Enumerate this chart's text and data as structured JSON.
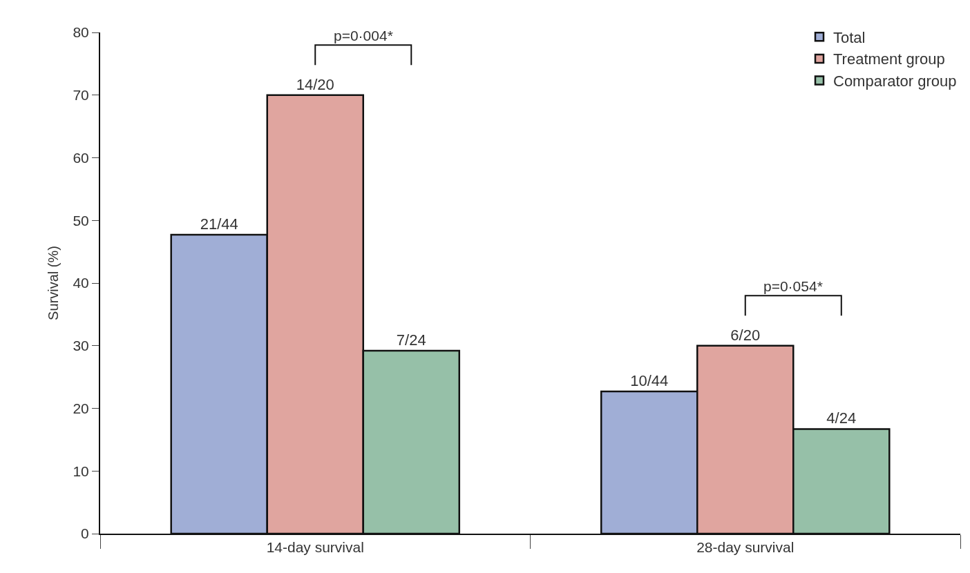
{
  "chart_data": {
    "type": "bar",
    "ylabel": "Survival (%)",
    "categories": [
      "14-day survival",
      "28-day survival"
    ],
    "series": [
      {
        "name": "Total",
        "color": "#a0aed6",
        "values": [
          47.7,
          22.7
        ],
        "value_labels": [
          "21/44",
          "10/44"
        ]
      },
      {
        "name": "Treatment group",
        "color": "#e0a59f",
        "values": [
          70,
          30
        ],
        "value_labels": [
          "14/20",
          "6/20"
        ]
      },
      {
        "name": "Comparator group",
        "color": "#96c0a8",
        "values": [
          29.2,
          16.7
        ],
        "value_labels": [
          "7/24",
          "4/24"
        ]
      }
    ],
    "ylim": [
      0,
      80
    ],
    "yticks": [
      0,
      10,
      20,
      30,
      40,
      50,
      60,
      70,
      80
    ],
    "annotations": [
      "p=0·004*",
      "p=0·054*"
    ],
    "legend": "top right"
  }
}
